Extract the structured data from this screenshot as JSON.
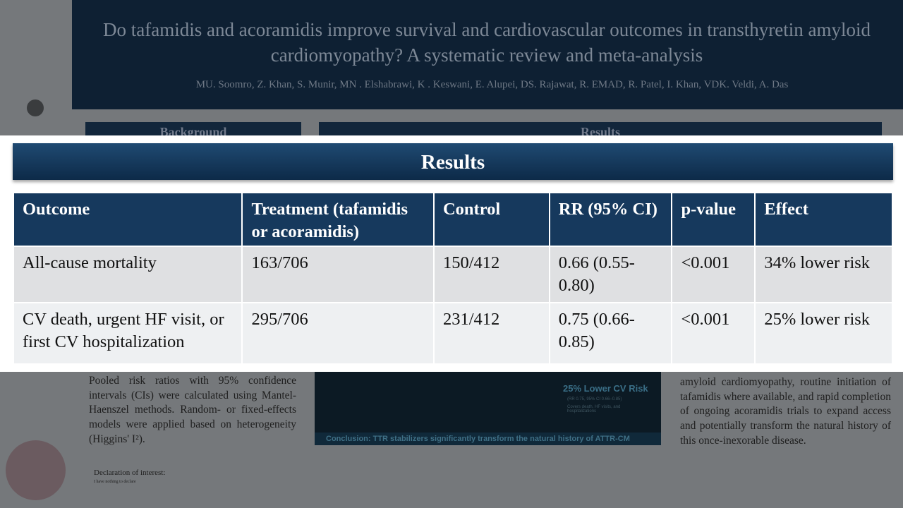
{
  "poster": {
    "title": "Do tafamidis and acoramidis improve survival and cardiovascular outcomes in transthyretin amyloid cardiomyopathy? A systematic review and meta-analysis",
    "authors": "MU. Soomro, Z. Khan, S. Munir, MN . Elshabrawi, K . Keswani, E. Alupei, DS. Rajawat, R. EMAD, R. Patel, I. Khan, VDK. Veldi, A. Das",
    "background_heading": "Background",
    "results_heading": "Results",
    "methods_text": "Pooled risk ratios with 95% confidence intervals (CIs) were calculated using Mantel-Haenszel methods. Random- or fixed-effects models were applied based on heterogeneity (Higgins' I²).",
    "declaration_heading": "Declaration of interest:",
    "declaration_text": "I have nothing to declare",
    "figure": {
      "callout_title": "25% Lower CV Risk",
      "callout_stat": "(RR 0.75, 95% CI 0.66–0.85)",
      "callout_note": "Covers death, HF visits, and hospitalizations",
      "conclusion": "Conclusion: TTR stabilizers significantly transform the natural history of ATTR-CM"
    },
    "conclusion_text": "amyloid cardiomyopathy, routine initiation of tafamidis where available, and rapid completion of ongoing acoramidis trials to expand access and potentially transform the natural history of this once-inexorable disease."
  },
  "overlay": {
    "title": "Results",
    "table": {
      "header": [
        "Outcome",
        "Treatment (tafamidis or acoramidis)",
        "Control",
        "RR (95% CI)",
        "p-value",
        "Effect"
      ],
      "rows": [
        [
          "All-cause mortality",
          "163/706",
          "150/412",
          "0.66 (0.55-0.80)",
          "<0.001",
          "34% lower risk"
        ],
        [
          "CV death, urgent HF visit, or first CV hospitalization",
          "295/706",
          "231/412",
          "0.75 (0.66-0.85)",
          "<0.001",
          "25% lower risk"
        ]
      ]
    }
  }
}
